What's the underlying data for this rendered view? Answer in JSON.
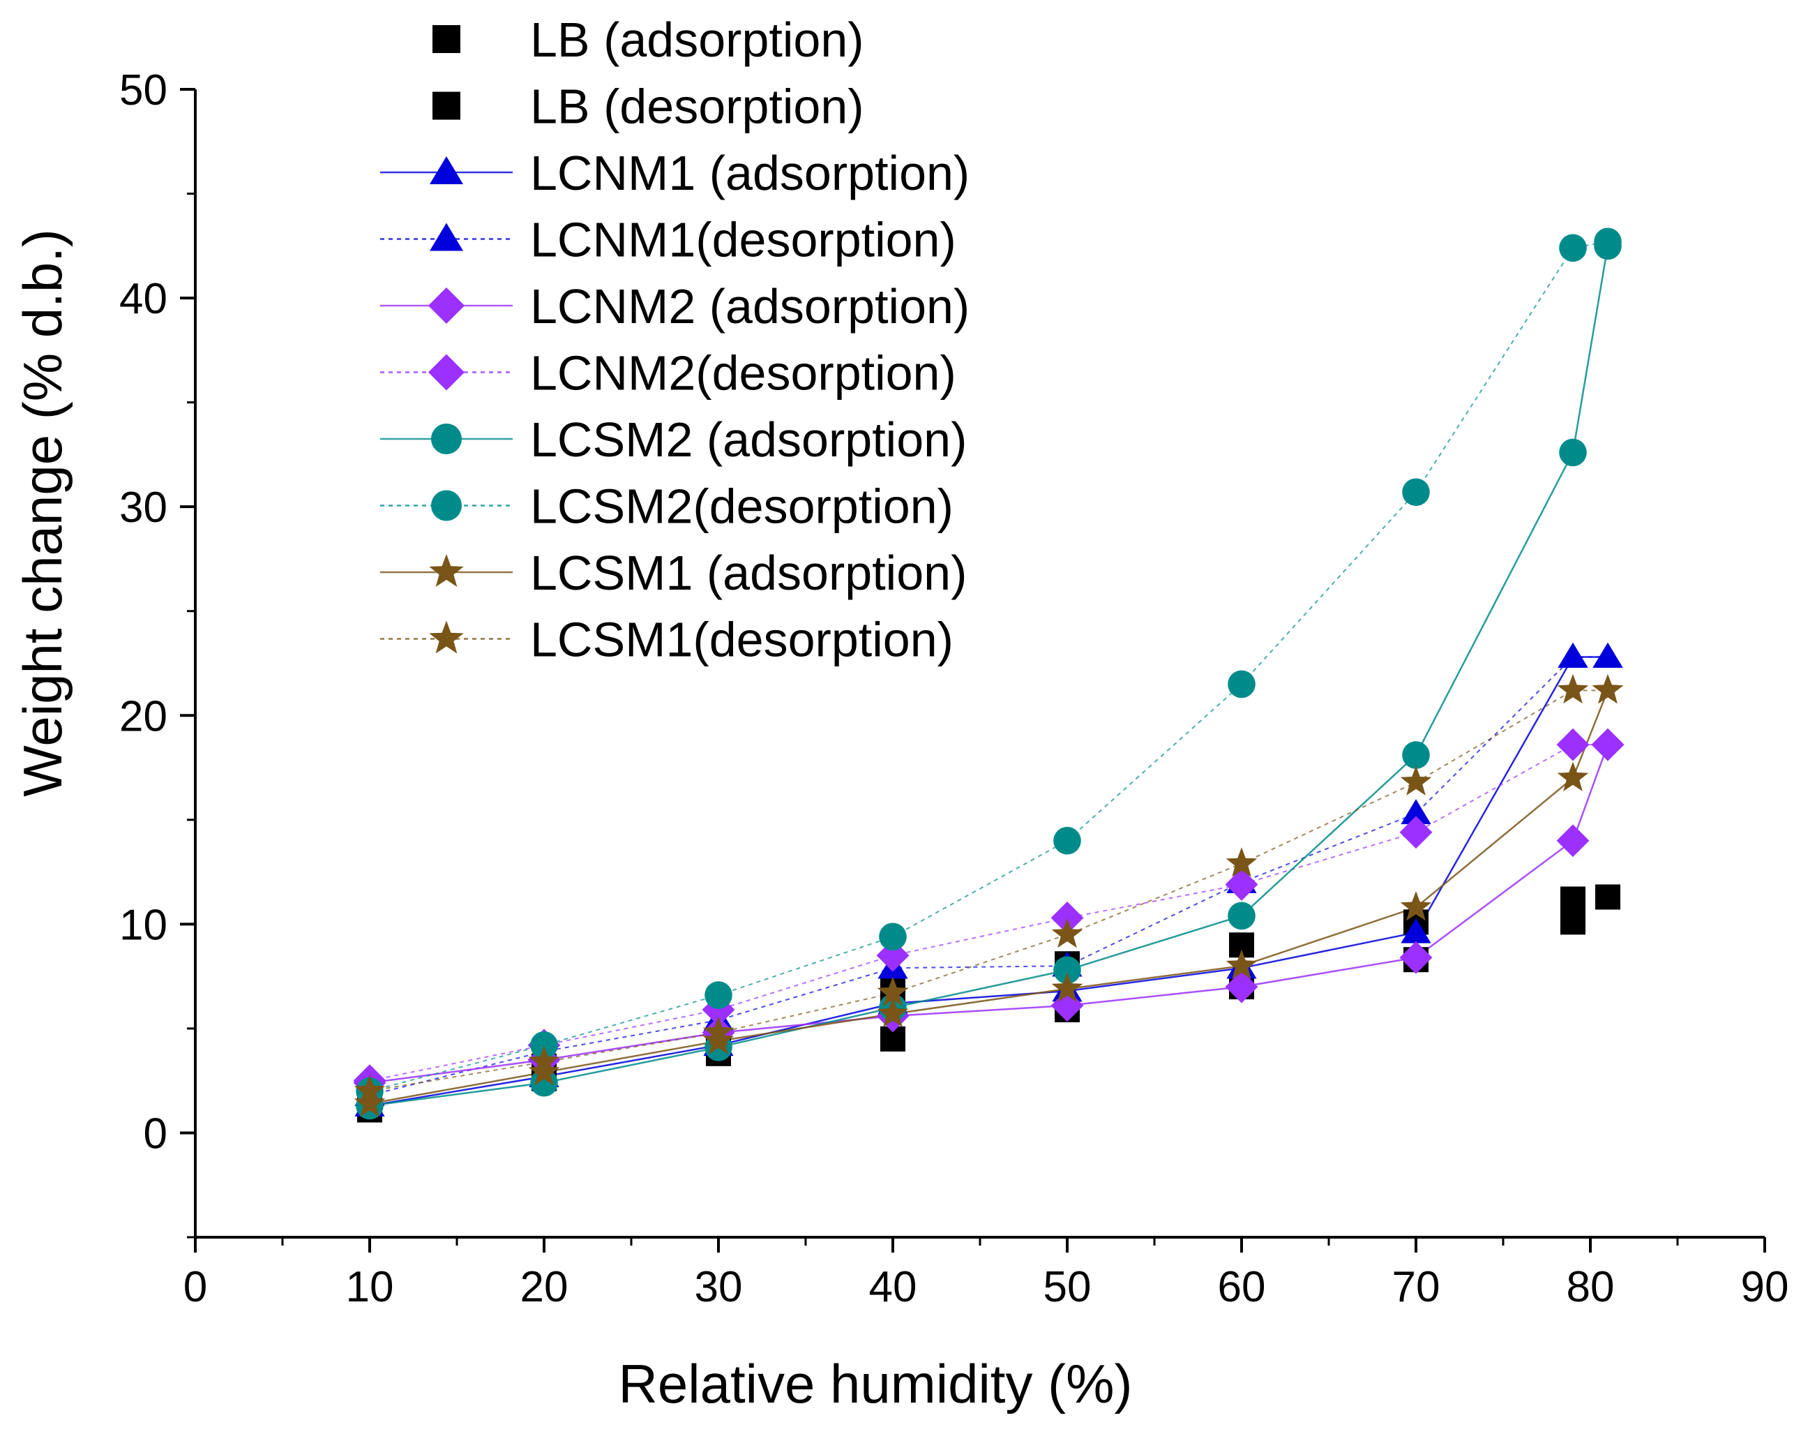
{
  "chart_data": {
    "type": "scatter",
    "title": "",
    "xlabel": "Relative humidity (%)",
    "ylabel": "Weight change (% d.b.)",
    "xlim": [
      0,
      90
    ],
    "ylim": [
      -5,
      50
    ],
    "xticks": [
      0,
      10,
      20,
      30,
      40,
      50,
      60,
      70,
      80,
      90
    ],
    "yticks": [
      0,
      10,
      20,
      30,
      40,
      50
    ],
    "grid": false,
    "legend_position": "top-center",
    "series": [
      {
        "name": "LB (adsorption)",
        "marker": "square",
        "color": "#000000",
        "line": "none",
        "x": [
          10,
          20,
          30,
          40,
          50,
          60,
          70,
          79,
          81
        ],
        "y": [
          1.1,
          2.6,
          3.8,
          4.5,
          5.9,
          7.0,
          8.3,
          10.1,
          11.3
        ]
      },
      {
        "name": "LB (desorption)",
        "marker": "square",
        "color": "#000000",
        "line": "none",
        "x": [
          10,
          20,
          30,
          40,
          50,
          60,
          70,
          79,
          81
        ],
        "y": [
          1.6,
          3.2,
          4.4,
          6.8,
          8.1,
          9.0,
          10.1,
          11.2,
          11.3
        ]
      },
      {
        "name": "LCNM1 (adsorption)",
        "marker": "triangle",
        "color": "#0000dd",
        "line": "solid",
        "x": [
          10,
          20,
          30,
          40,
          50,
          60,
          70,
          79,
          81
        ],
        "y": [
          1.3,
          2.7,
          4.2,
          6.2,
          6.8,
          7.9,
          9.6,
          22.8,
          22.8
        ]
      },
      {
        "name": "LCNM1(desorption)",
        "marker": "triangle",
        "color": "#0000dd",
        "line": "dashed",
        "x": [
          10,
          20,
          30,
          40,
          50,
          60,
          70,
          79,
          81
        ],
        "y": [
          1.8,
          3.9,
          5.4,
          7.9,
          8.0,
          12.0,
          15.3,
          22.8,
          22.8
        ]
      },
      {
        "name": "LCNM2 (adsorption)",
        "marker": "diamond",
        "color": "#9b30ff",
        "line": "solid",
        "x": [
          10,
          20,
          30,
          40,
          50,
          60,
          70,
          79,
          81
        ],
        "y": [
          2.4,
          3.5,
          4.8,
          5.6,
          6.1,
          7.0,
          8.4,
          14.0,
          18.6
        ]
      },
      {
        "name": "LCNM2(desorption)",
        "marker": "diamond",
        "color": "#9b30ff",
        "line": "dashed",
        "x": [
          10,
          20,
          30,
          40,
          50,
          60,
          70,
          79,
          81
        ],
        "y": [
          2.5,
          4.2,
          5.9,
          8.5,
          10.3,
          11.9,
          14.4,
          18.6,
          18.6
        ]
      },
      {
        "name": "LCSM2 (adsorption)",
        "marker": "circle",
        "color": "#008b8b",
        "line": "solid",
        "x": [
          10,
          20,
          30,
          40,
          50,
          60,
          70,
          79,
          81
        ],
        "y": [
          1.3,
          2.4,
          4.1,
          6.0,
          7.8,
          10.4,
          18.1,
          32.6,
          42.5
        ]
      },
      {
        "name": "LCSM2(desorption)",
        "marker": "circle",
        "color": "#008b8b",
        "line": "dashed",
        "x": [
          10,
          20,
          30,
          40,
          50,
          60,
          70,
          79,
          81
        ],
        "y": [
          2.0,
          4.2,
          6.6,
          9.4,
          14.0,
          21.5,
          30.7,
          42.4,
          42.7
        ]
      },
      {
        "name": "LCSM1 (adsorption)",
        "marker": "star",
        "color": "#7a5518",
        "line": "solid",
        "x": [
          10,
          20,
          30,
          40,
          50,
          60,
          70,
          79,
          81
        ],
        "y": [
          1.4,
          2.9,
          4.4,
          5.7,
          6.9,
          8.0,
          10.8,
          17.0,
          21.2
        ]
      },
      {
        "name": "LCSM1(desorption)",
        "marker": "star",
        "color": "#7a5518",
        "line": "dashed",
        "x": [
          10,
          20,
          30,
          40,
          50,
          60,
          70,
          79,
          81
        ],
        "y": [
          2.0,
          3.4,
          4.8,
          6.7,
          9.5,
          12.9,
          16.8,
          21.2,
          21.2
        ]
      }
    ]
  }
}
